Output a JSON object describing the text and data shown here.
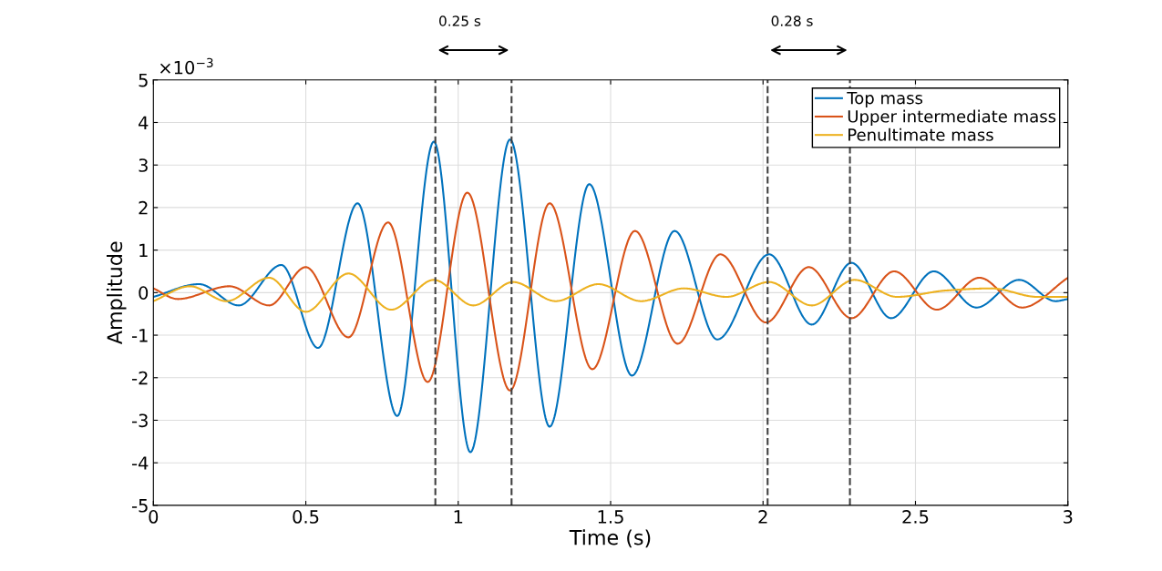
{
  "chart_data": {
    "type": "line",
    "xlabel": "Time (s)",
    "ylabel": "Amplitude",
    "xlim": [
      0,
      3
    ],
    "xticks": [
      0,
      0.5,
      1,
      1.5,
      2,
      2.5,
      3
    ],
    "ylim": [
      -5,
      5
    ],
    "yticks": [
      -5,
      -4,
      -3,
      -2,
      -1,
      0,
      1,
      2,
      3,
      4,
      5
    ],
    "grid": true,
    "legend": "top right",
    "line_style": "solid",
    "marker": "none",
    "series": [
      {
        "name": "Top mass",
        "color": "#0072bd",
        "x": [
          0.0,
          0.15,
          0.28,
          0.42,
          0.54,
          0.67,
          0.8,
          0.92,
          1.04,
          1.17,
          1.3,
          1.43,
          1.57,
          1.71,
          1.85,
          2.02,
          2.16,
          2.29,
          2.42,
          2.56,
          2.7,
          2.84,
          2.96,
          3.0
        ],
        "values": [
          -0.1,
          0.2,
          -0.3,
          0.65,
          -1.3,
          2.1,
          -2.9,
          3.55,
          -3.75,
          3.6,
          -3.15,
          2.55,
          -1.95,
          1.45,
          -1.1,
          0.9,
          -0.75,
          0.7,
          -0.6,
          0.5,
          -0.35,
          0.3,
          -0.2,
          -0.15
        ]
      },
      {
        "name": "Upper intermediate mass",
        "color": "#d95319",
        "x": [
          0.0,
          0.08,
          0.25,
          0.38,
          0.5,
          0.64,
          0.77,
          0.9,
          1.03,
          1.17,
          1.3,
          1.44,
          1.58,
          1.72,
          1.86,
          2.01,
          2.15,
          2.29,
          2.43,
          2.57,
          2.71,
          2.85,
          3.0
        ],
        "values": [
          0.1,
          -0.15,
          0.15,
          -0.3,
          0.6,
          -1.05,
          1.65,
          -2.1,
          2.35,
          -2.3,
          2.1,
          -1.8,
          1.45,
          -1.2,
          0.9,
          -0.7,
          0.6,
          -0.6,
          0.5,
          -0.4,
          0.35,
          -0.35,
          0.35
        ]
      },
      {
        "name": "Penultimate mass",
        "color": "#edb120",
        "x": [
          0.0,
          0.12,
          0.24,
          0.38,
          0.5,
          0.64,
          0.78,
          0.92,
          1.05,
          1.18,
          1.32,
          1.46,
          1.6,
          1.74,
          1.88,
          2.02,
          2.16,
          2.3,
          2.44,
          2.6,
          2.75,
          2.9,
          3.0
        ],
        "values": [
          -0.2,
          0.15,
          -0.2,
          0.35,
          -0.45,
          0.45,
          -0.4,
          0.3,
          -0.3,
          0.25,
          -0.2,
          0.2,
          -0.2,
          0.1,
          -0.1,
          0.25,
          -0.3,
          0.3,
          -0.1,
          0.05,
          0.1,
          -0.1,
          -0.1
        ]
      }
    ],
    "ref_lines": [
      {
        "axis": "x",
        "value": 0.925,
        "color": "#404040",
        "line_style": "dashed"
      },
      {
        "axis": "x",
        "value": 1.175,
        "color": "#404040",
        "line_style": "dashed"
      },
      {
        "axis": "x",
        "value": 2.015,
        "color": "#404040",
        "line_style": "dashed"
      },
      {
        "axis": "x",
        "value": 2.285,
        "color": "#404040",
        "line_style": "dashed"
      }
    ],
    "annotations": [
      "×10$^{−3}$",
      "0.25 s",
      "0.28 s"
    ]
  }
}
